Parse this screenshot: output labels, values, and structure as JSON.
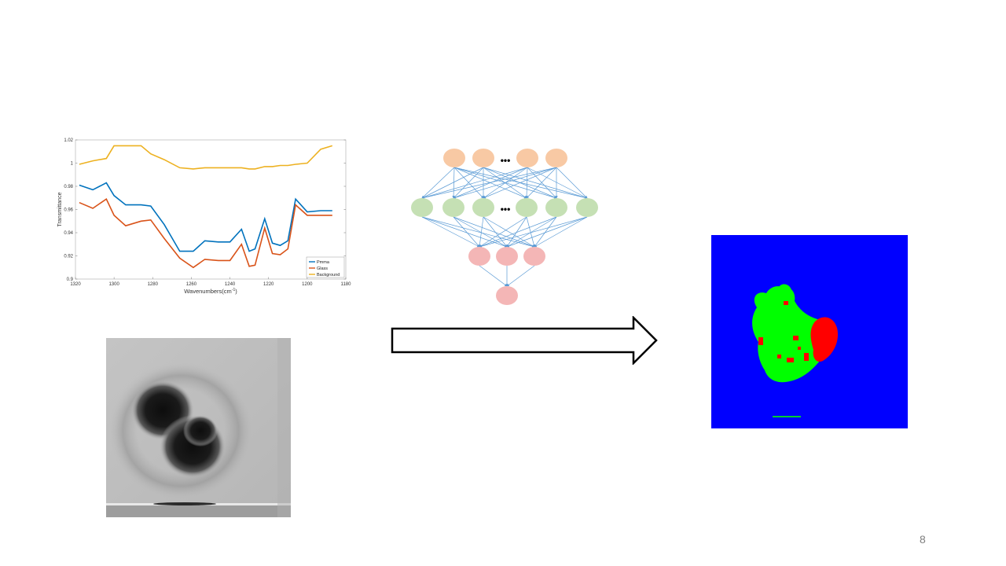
{
  "page_number": "8",
  "chart_data": {
    "type": "line",
    "xlabel": "Wavenumbers(cm",
    "xlabel_sup": "-1",
    "xlabel_end": ")",
    "ylabel": "Transmittance",
    "xlim": [
      1320,
      1180
    ],
    "ylim": [
      0.9,
      1.02
    ],
    "x_ticks": [
      "1320",
      "1300",
      "1280",
      "1260",
      "1240",
      "1220",
      "1200",
      "1180"
    ],
    "y_ticks": [
      "0.9",
      "0.92",
      "0.94",
      "0.96",
      "0.98",
      "1",
      "1.02"
    ],
    "legend_position": "bottom-right",
    "x": [
      1318,
      1311,
      1304,
      1300,
      1294,
      1286,
      1281,
      1274,
      1266,
      1259,
      1253,
      1246,
      1240,
      1234,
      1230,
      1227,
      1222,
      1218,
      1214,
      1210,
      1206,
      1200,
      1193,
      1187
    ],
    "series": [
      {
        "name": "Pmma",
        "color": "#0072bd",
        "values": [
          0.981,
          0.977,
          0.983,
          0.972,
          0.964,
          0.964,
          0.963,
          0.947,
          0.924,
          0.924,
          0.933,
          0.932,
          0.932,
          0.943,
          0.924,
          0.926,
          0.952,
          0.931,
          0.929,
          0.933,
          0.969,
          0.958,
          0.959,
          0.959
        ]
      },
      {
        "name": "Glass",
        "color": "#d95319",
        "values": [
          0.966,
          0.961,
          0.969,
          0.955,
          0.946,
          0.95,
          0.951,
          0.935,
          0.918,
          0.91,
          0.917,
          0.916,
          0.916,
          0.93,
          0.911,
          0.912,
          0.944,
          0.922,
          0.921,
          0.926,
          0.964,
          0.955,
          0.955,
          0.955
        ]
      },
      {
        "name": "Background",
        "color": "#edb120",
        "values": [
          0.999,
          1.002,
          1.004,
          1.015,
          1.015,
          1.015,
          1.008,
          1.003,
          0.996,
          0.995,
          0.996,
          0.996,
          0.996,
          0.996,
          0.995,
          0.995,
          0.997,
          0.997,
          0.998,
          0.998,
          0.999,
          1.0,
          1.012,
          1.015
        ]
      }
    ]
  },
  "neural_net": {
    "ellipsis": "•••",
    "input_color": "#f8c9a4",
    "hidden_color": "#c5e0b4",
    "output_color": "#f4b6b6",
    "edge_color": "#5b9bd5"
  },
  "class_map_colors": {
    "background": "#0000ff",
    "class_a": "#00ff00",
    "class_b": "#ff0000"
  }
}
